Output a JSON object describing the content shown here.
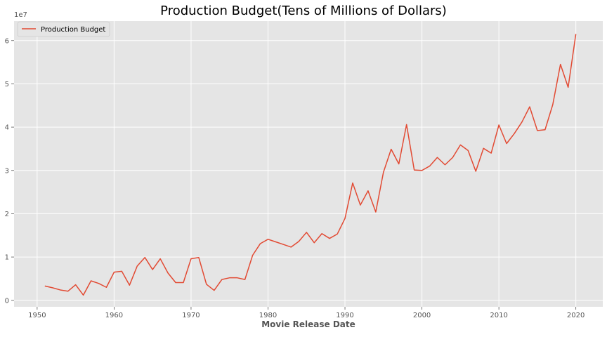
{
  "chart_data": {
    "type": "line",
    "title": "Production Budget(Tens of Millions of Dollars)",
    "xlabel": "Movie Release Date",
    "ylabel": "",
    "y_offset_label": "1e7",
    "xlim": [
      1947,
      2023.5
    ],
    "ylim": [
      -0.15,
      6.45
    ],
    "y_scale_factor": 10000000,
    "xticks": [
      1950,
      1960,
      1970,
      1980,
      1990,
      2000,
      2010,
      2020
    ],
    "xtick_labels": [
      "1950",
      "1960",
      "1970",
      "1980",
      "1990",
      "2000",
      "2010",
      "2020"
    ],
    "yticks": [
      0,
      1,
      2,
      3,
      4,
      5,
      6
    ],
    "ytick_labels": [
      "0",
      "1",
      "2",
      "3",
      "4",
      "5",
      "6"
    ],
    "grid": true,
    "legend_position": "top-left",
    "colors": {
      "line": "#E24A33",
      "axes_bg": "#E5E5E5",
      "grid": "#FFFFFF",
      "tick_text": "#555555",
      "title_text": "#000000"
    },
    "series": [
      {
        "name": "Production Budget",
        "x": [
          1951,
          1952,
          1953,
          1954,
          1955,
          1956,
          1957,
          1958,
          1959,
          1960,
          1961,
          1962,
          1963,
          1964,
          1965,
          1966,
          1967,
          1968,
          1969,
          1970,
          1971,
          1972,
          1973,
          1974,
          1975,
          1976,
          1977,
          1978,
          1979,
          1980,
          1981,
          1982,
          1983,
          1984,
          1985,
          1986,
          1987,
          1988,
          1989,
          1990,
          1991,
          1992,
          1993,
          1994,
          1995,
          1996,
          1997,
          1998,
          1999,
          2000,
          2001,
          2002,
          2003,
          2004,
          2005,
          2006,
          2007,
          2008,
          2009,
          2010,
          2011,
          2012,
          2013,
          2014,
          2015,
          2016,
          2017,
          2018,
          2019,
          2020
        ],
        "y": [
          0.33,
          0.29,
          0.24,
          0.21,
          0.36,
          0.12,
          0.45,
          0.39,
          0.3,
          0.65,
          0.67,
          0.35,
          0.79,
          0.99,
          0.71,
          0.96,
          0.63,
          0.41,
          0.41,
          0.96,
          0.99,
          0.37,
          0.23,
          0.48,
          0.52,
          0.52,
          0.48,
          1.04,
          1.31,
          1.41,
          1.35,
          1.29,
          1.23,
          1.36,
          1.57,
          1.33,
          1.54,
          1.43,
          1.53,
          1.89,
          2.71,
          2.2,
          2.53,
          2.04,
          2.96,
          3.49,
          3.15,
          4.06,
          3.01,
          3.0,
          3.1,
          3.3,
          3.13,
          3.3,
          3.59,
          3.46,
          2.98,
          3.51,
          3.4,
          4.05,
          3.62,
          3.85,
          4.12,
          4.47,
          3.92,
          3.94,
          4.52,
          5.45,
          4.92,
          6.15
        ]
      }
    ]
  }
}
